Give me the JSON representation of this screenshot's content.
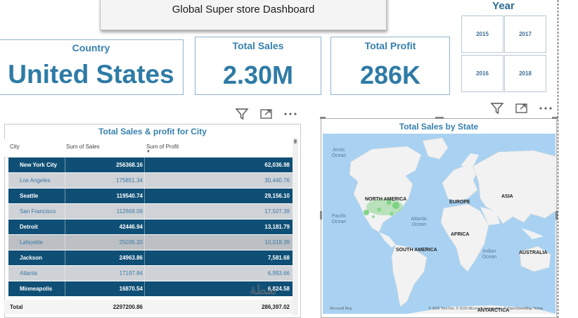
{
  "header": {
    "title": "Global Super store Dashboard"
  },
  "year_slicer": {
    "title": "Year",
    "years": [
      "2015",
      "2017",
      "2016",
      "2018"
    ]
  },
  "cards": {
    "country": {
      "label": "Country",
      "value": "United States"
    },
    "total_sales": {
      "label": "Total Sales",
      "value": "2.30M"
    },
    "total_profit": {
      "label": "Total Profit",
      "value": "286K"
    }
  },
  "table": {
    "title": "Total Sales & profit for City",
    "columns": [
      "City",
      "Sum of Sales",
      "Sum of Profit"
    ],
    "rows": [
      {
        "city": "New York City",
        "sales": "256368.16",
        "profit": "62,036.98"
      },
      {
        "city": "Los Angeles",
        "sales": "175851.34",
        "profit": "30,440.76"
      },
      {
        "city": "Seattle",
        "sales": "119540.74",
        "profit": "29,156.10"
      },
      {
        "city": "San Francisco",
        "sales": "112669.09",
        "profit": "17,507.39"
      },
      {
        "city": "Detroit",
        "sales": "42446.94",
        "profit": "13,181.79"
      },
      {
        "city": "Lafayette",
        "sales": "25036.20",
        "profit": "10,018.39"
      },
      {
        "city": "Jackson",
        "sales": "24963.86",
        "profit": "7,581.68"
      },
      {
        "city": "Atlanta",
        "sales": "17197.84",
        "profit": "6,993.66"
      },
      {
        "city": "Minneapolis",
        "sales": "16870.54",
        "profit": "6,824.58"
      }
    ],
    "total": {
      "label": "Total",
      "sales": "2297200.86",
      "profit": "286,397.02"
    }
  },
  "map": {
    "title": "Total Sales by State",
    "continents": [
      "NORTH AMERICA",
      "EUROPE",
      "ASIA",
      "AFRICA",
      "SOUTH AMERICA",
      "AUSTRALIA",
      "ANTARCTICA"
    ],
    "oceans": [
      "Arctic Ocean",
      "Pacific Ocean",
      "Atlantic Ocean",
      "Indian Ocean"
    ],
    "attribution": "© 2025 TomTom, © 2025 Microsoft Corporation, © OpenStreetMap  Terms",
    "logo": "Microsoft Bing"
  },
  "colors": {
    "accent": "#3580ac",
    "row_dark": "#0f4f75",
    "row_light": "#cfd2d6",
    "map_water": "#a9d2f2",
    "map_land": "#f2f2f2"
  },
  "icons": [
    "filter-icon",
    "focus-mode-icon",
    "more-options-icon"
  ]
}
